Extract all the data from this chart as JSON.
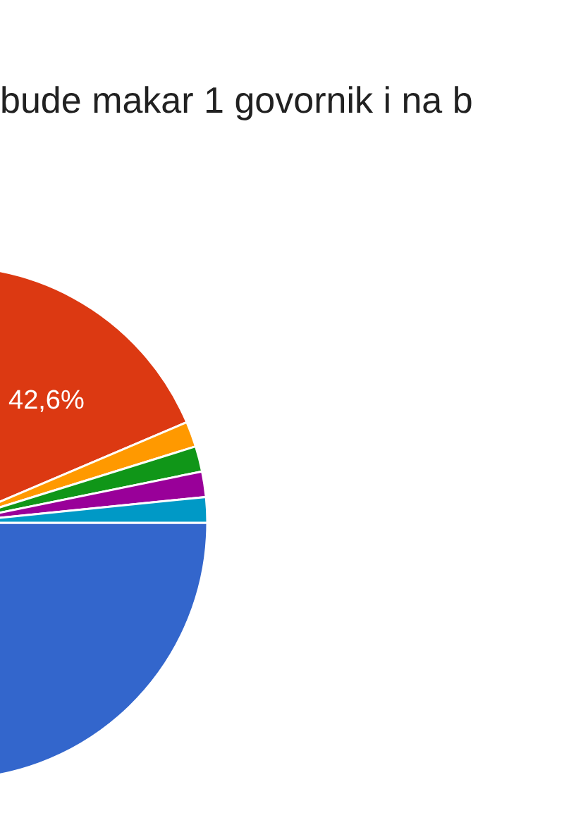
{
  "chart_data": {
    "type": "pie",
    "title": "bude makar 1 govornik i na b",
    "categories": [
      null,
      null,
      null,
      null,
      null,
      null
    ],
    "values": [
      50.8,
      42.6,
      1.6,
      1.6,
      1.6,
      1.6
    ],
    "colors": [
      "#3366cc",
      "#dc3912",
      "#ff9900",
      "#109618",
      "#990099",
      "#0099c6"
    ],
    "value_labels": [
      null,
      "42,6%",
      null,
      null,
      null,
      null
    ],
    "legend": false
  }
}
